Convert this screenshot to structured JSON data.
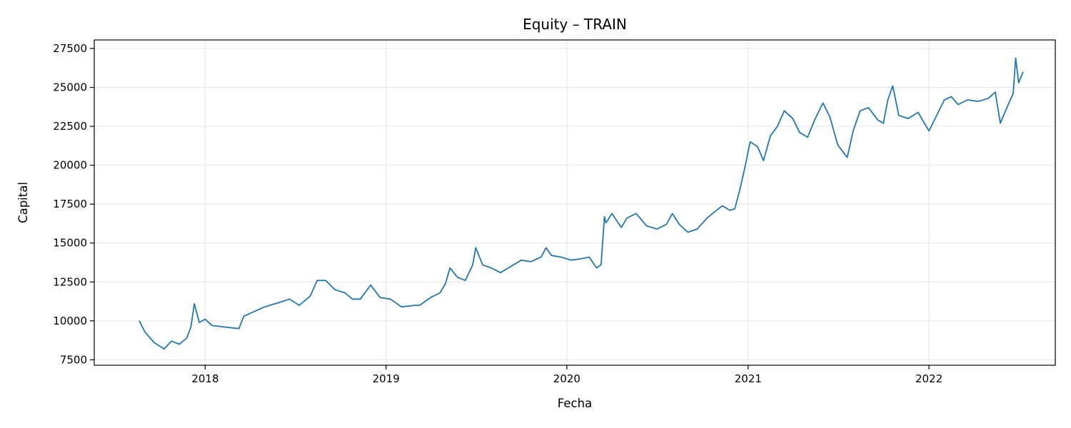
{
  "chart_data": {
    "type": "line",
    "title": "Equity – TRAIN",
    "xlabel": "Fecha",
    "ylabel": "Capital",
    "x_axis": "date",
    "xlim": [
      "2017-05-22",
      "2022-09-13"
    ],
    "ylim": [
      7150,
      28050
    ],
    "xticks": [
      "2018-01-01",
      "2019-01-01",
      "2020-01-01",
      "2021-01-01",
      "2022-01-01"
    ],
    "xtick_labels": [
      "2018",
      "2019",
      "2020",
      "2021",
      "2022"
    ],
    "yticks": [
      7500,
      10000,
      12500,
      15000,
      17500,
      20000,
      22500,
      25000,
      27500
    ],
    "ytick_labels": [
      "7500",
      "10000",
      "12500",
      "15000",
      "17500",
      "20000",
      "22500",
      "25000",
      "27500"
    ],
    "grid": true,
    "legend": "none",
    "colors": {
      "line": "#1f77b4",
      "grid": "#e5e5e5",
      "frame": "#000000"
    },
    "series": [
      {
        "x": [
          "2017-08-21",
          "2017-09-01",
          "2017-09-20",
          "2017-10-10",
          "2017-10-25",
          "2017-11-10",
          "2017-11-25",
          "2017-12-03",
          "2017-12-10",
          "2017-12-20",
          "2018-01-01",
          "2018-01-15",
          "2018-02-10",
          "2018-03-10",
          "2018-03-20",
          "2018-04-10",
          "2018-05-01",
          "2018-06-01",
          "2018-06-20",
          "2018-07-10",
          "2018-08-01",
          "2018-08-15",
          "2018-09-01",
          "2018-09-20",
          "2018-10-10",
          "2018-10-25",
          "2018-11-10",
          "2018-12-01",
          "2018-12-20",
          "2019-01-10",
          "2019-02-01",
          "2019-03-01",
          "2019-03-10",
          "2019-04-01",
          "2019-04-20",
          "2019-05-01",
          "2019-05-10",
          "2019-05-25",
          "2019-06-10",
          "2019-06-25",
          "2019-07-01",
          "2019-07-15",
          "2019-08-01",
          "2019-08-20",
          "2019-09-10",
          "2019-10-01",
          "2019-10-20",
          "2019-11-10",
          "2019-11-20",
          "2019-12-01",
          "2019-12-20",
          "2020-01-10",
          "2020-02-01",
          "2020-02-15",
          "2020-03-01",
          "2020-03-10",
          "2020-03-17",
          "2020-03-20",
          "2020-04-01",
          "2020-04-20",
          "2020-05-01",
          "2020-05-20",
          "2020-06-10",
          "2020-07-01",
          "2020-07-20",
          "2020-08-01",
          "2020-08-15",
          "2020-09-01",
          "2020-09-20",
          "2020-10-10",
          "2020-10-25",
          "2020-11-10",
          "2020-11-25",
          "2020-12-05",
          "2020-12-15",
          "2020-12-25",
          "2021-01-05",
          "2021-01-20",
          "2021-02-01",
          "2021-02-15",
          "2021-03-01",
          "2021-03-15",
          "2021-04-01",
          "2021-04-15",
          "2021-05-01",
          "2021-05-15",
          "2021-06-01",
          "2021-06-15",
          "2021-07-01",
          "2021-07-20",
          "2021-08-01",
          "2021-08-15",
          "2021-09-01",
          "2021-09-20",
          "2021-10-01",
          "2021-10-10",
          "2021-10-20",
          "2021-11-01",
          "2021-11-20",
          "2021-12-10",
          "2022-01-01",
          "2022-01-15",
          "2022-02-01",
          "2022-02-15",
          "2022-03-01",
          "2022-03-20",
          "2022-04-10",
          "2022-05-01",
          "2022-05-15",
          "2022-05-25",
          "2022-06-10",
          "2022-06-20",
          "2022-06-25",
          "2022-07-01",
          "2022-07-10"
        ],
        "y": [
          10000,
          9300,
          8600,
          8200,
          8700,
          8500,
          8900,
          9600,
          11100,
          9900,
          10100,
          9700,
          9600,
          9500,
          10300,
          10600,
          10900,
          11200,
          11400,
          11000,
          11600,
          12600,
          12600,
          12000,
          11800,
          11400,
          11400,
          12300,
          11500,
          11400,
          10900,
          11000,
          11000,
          11500,
          11800,
          12400,
          13400,
          12800,
          12600,
          13600,
          14700,
          13600,
          13400,
          13100,
          13500,
          13900,
          13800,
          14100,
          14700,
          14200,
          14100,
          13900,
          14000,
          14100,
          13400,
          13600,
          16700,
          16300,
          16900,
          16000,
          16600,
          16900,
          16100,
          15900,
          16200,
          16900,
          16200,
          15700,
          15900,
          16600,
          17000,
          17400,
          17100,
          17200,
          18400,
          19800,
          21500,
          21200,
          20300,
          21900,
          22500,
          23500,
          23000,
          22100,
          21800,
          22900,
          24000,
          23100,
          21300,
          20500,
          22200,
          23500,
          23700,
          22900,
          22700,
          24200,
          25100,
          23200,
          23000,
          23400,
          22200,
          23100,
          24200,
          24400,
          23900,
          24200,
          24100,
          24300,
          24700,
          22700,
          23900,
          24600,
          26900,
          25300,
          26000
        ]
      }
    ]
  }
}
